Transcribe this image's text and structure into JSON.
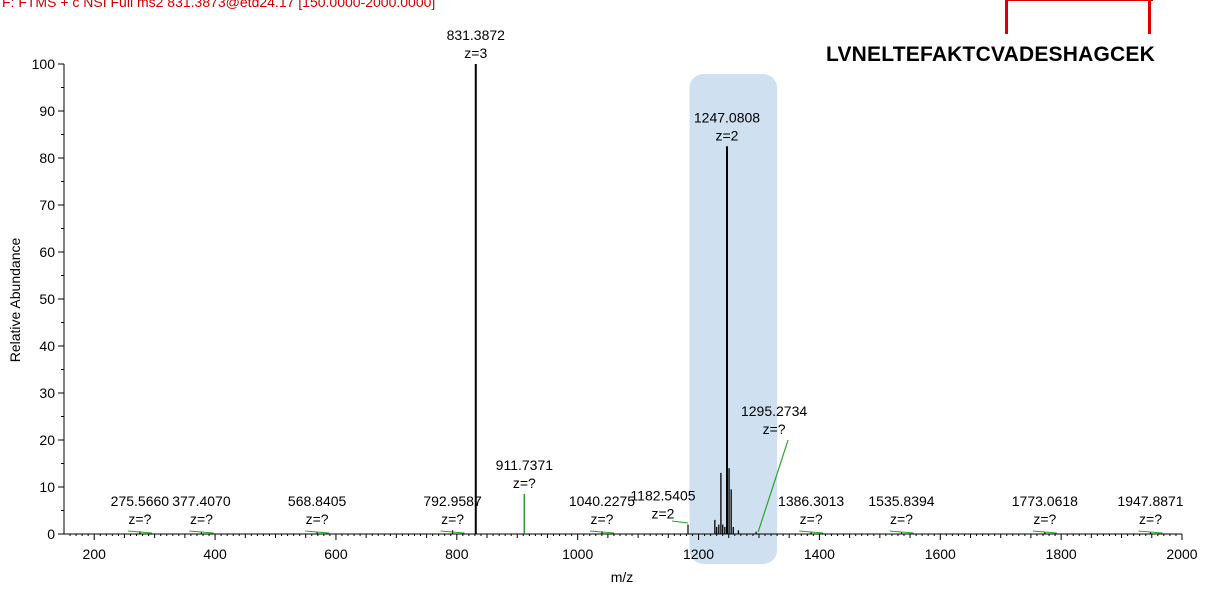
{
  "header": {
    "scan_filter": "F: FTMS + c NSI Full ms2 831.3873@etd24.17 [150.0000-2000.0000]",
    "peptide": "LVNELTEFAKTCVADESHAGCEK"
  },
  "colors": {
    "highlight": "#cfe0f0",
    "peak": "#000000",
    "annotation_line": "#2ca02c",
    "header_text": "#cc0000",
    "bracket": "#dd0000"
  },
  "chart_data": {
    "type": "bar",
    "xlabel": "m/z",
    "ylabel": "Relative Abundance",
    "xlim": [
      150,
      2000
    ],
    "ylim": [
      0,
      100
    ],
    "xticks": [
      200,
      400,
      600,
      800,
      1000,
      1200,
      1400,
      1600,
      1800,
      2000
    ],
    "yticks": [
      0,
      10,
      20,
      30,
      40,
      50,
      60,
      70,
      80,
      90,
      100
    ],
    "highlight_range": [
      1185,
      1330
    ],
    "peaks": [
      {
        "mz": 275.566,
        "intensity": 0.6,
        "label": "275.5660",
        "charge": "z=?",
        "label_y": 0.4
      },
      {
        "mz": 377.407,
        "intensity": 0.4,
        "label": "377.4070",
        "charge": "z=?",
        "label_y": 0.4
      },
      {
        "mz": 568.8405,
        "intensity": 0.4,
        "label": "568.8405",
        "charge": "z=?",
        "label_y": 0.4
      },
      {
        "mz": 792.9587,
        "intensity": 0.8,
        "label": "792.9587",
        "charge": "z=?",
        "label_y": 0.4
      },
      {
        "mz": 831.3872,
        "intensity": 100,
        "label": "831.3872",
        "charge": "z=3",
        "label_y": 100
      },
      {
        "mz": 911.7371,
        "intensity": 8.5,
        "label": "911.7371",
        "charge": "z=?",
        "label_y": 8.5
      },
      {
        "mz": 1040.2275,
        "intensity": 0.6,
        "label": "1040.2275",
        "charge": "z=?",
        "label_y": 0.4
      },
      {
        "mz": 1182.5405,
        "intensity": 2.0,
        "label": "1182.5405",
        "charge": "z=2",
        "label_y": 2.0
      },
      {
        "mz": 1247.0808,
        "intensity": 82.5,
        "label": "1247.0808",
        "charge": "z=2",
        "label_y": 82.5
      },
      {
        "mz": 1295.2734,
        "intensity": 0.5,
        "label": "1295.2734",
        "charge": "z=?",
        "label_y": 20
      },
      {
        "mz": 1386.3013,
        "intensity": 0.4,
        "label": "1386.3013",
        "charge": "z=?",
        "label_y": 0.4
      },
      {
        "mz": 1535.8394,
        "intensity": 0.4,
        "label": "1535.8394",
        "charge": "z=?",
        "label_y": 0.4
      },
      {
        "mz": 1773.0618,
        "intensity": 0.4,
        "label": "1773.0618",
        "charge": "z=?",
        "label_y": 0.4
      },
      {
        "mz": 1947.8871,
        "intensity": 0.4,
        "label": "1947.8871",
        "charge": "z=?",
        "label_y": 0.4
      }
    ],
    "minor_peaks": [
      {
        "mz": 1227.0,
        "intensity": 3.0
      },
      {
        "mz": 1230.0,
        "intensity": 1.5
      },
      {
        "mz": 1233.5,
        "intensity": 2.0
      },
      {
        "mz": 1237.0,
        "intensity": 13.0
      },
      {
        "mz": 1240.0,
        "intensity": 2.0
      },
      {
        "mz": 1243.5,
        "intensity": 1.5
      },
      {
        "mz": 1250.5,
        "intensity": 14.0
      },
      {
        "mz": 1254.0,
        "intensity": 9.5
      },
      {
        "mz": 1257.5,
        "intensity": 1.5
      },
      {
        "mz": 1266.0,
        "intensity": 0.8
      }
    ]
  }
}
